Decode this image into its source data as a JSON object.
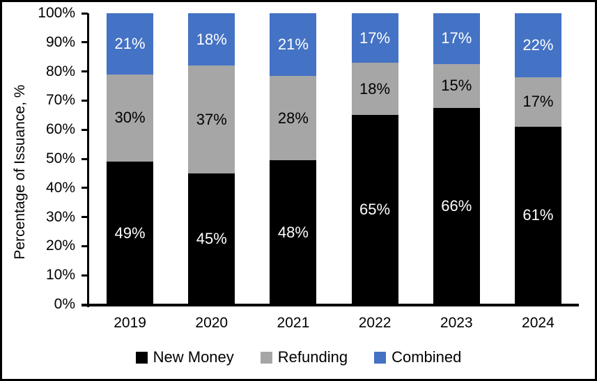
{
  "chart_data": {
    "type": "bar",
    "variant": "100-percent-stacked-column",
    "title": "",
    "ylabel": "Percentage of Issuance, %",
    "xlabel": "",
    "ylim": [
      0,
      100
    ],
    "yticks": [
      "0%",
      "10%",
      "20%",
      "30%",
      "40%",
      "50%",
      "60%",
      "70%",
      "80%",
      "90%",
      "100%"
    ],
    "grid": false,
    "legend_position": "bottom",
    "data_label_suffix": "%",
    "categories": [
      "2019",
      "2020",
      "2021",
      "2022",
      "2023",
      "2024"
    ],
    "series": [
      {
        "name": "New Money",
        "color": "#000000",
        "label_color": "#FFFFFF",
        "values": [
          49,
          45,
          48,
          65,
          66,
          61
        ]
      },
      {
        "name": "Refunding",
        "color": "#A6A6A6",
        "label_color": "#000000",
        "values": [
          30,
          37,
          28,
          18,
          15,
          17
        ]
      },
      {
        "name": "Combined",
        "color": "#4472C4",
        "label_color": "#FFFFFF",
        "values": [
          21,
          18,
          21,
          17,
          17,
          22
        ]
      }
    ]
  }
}
